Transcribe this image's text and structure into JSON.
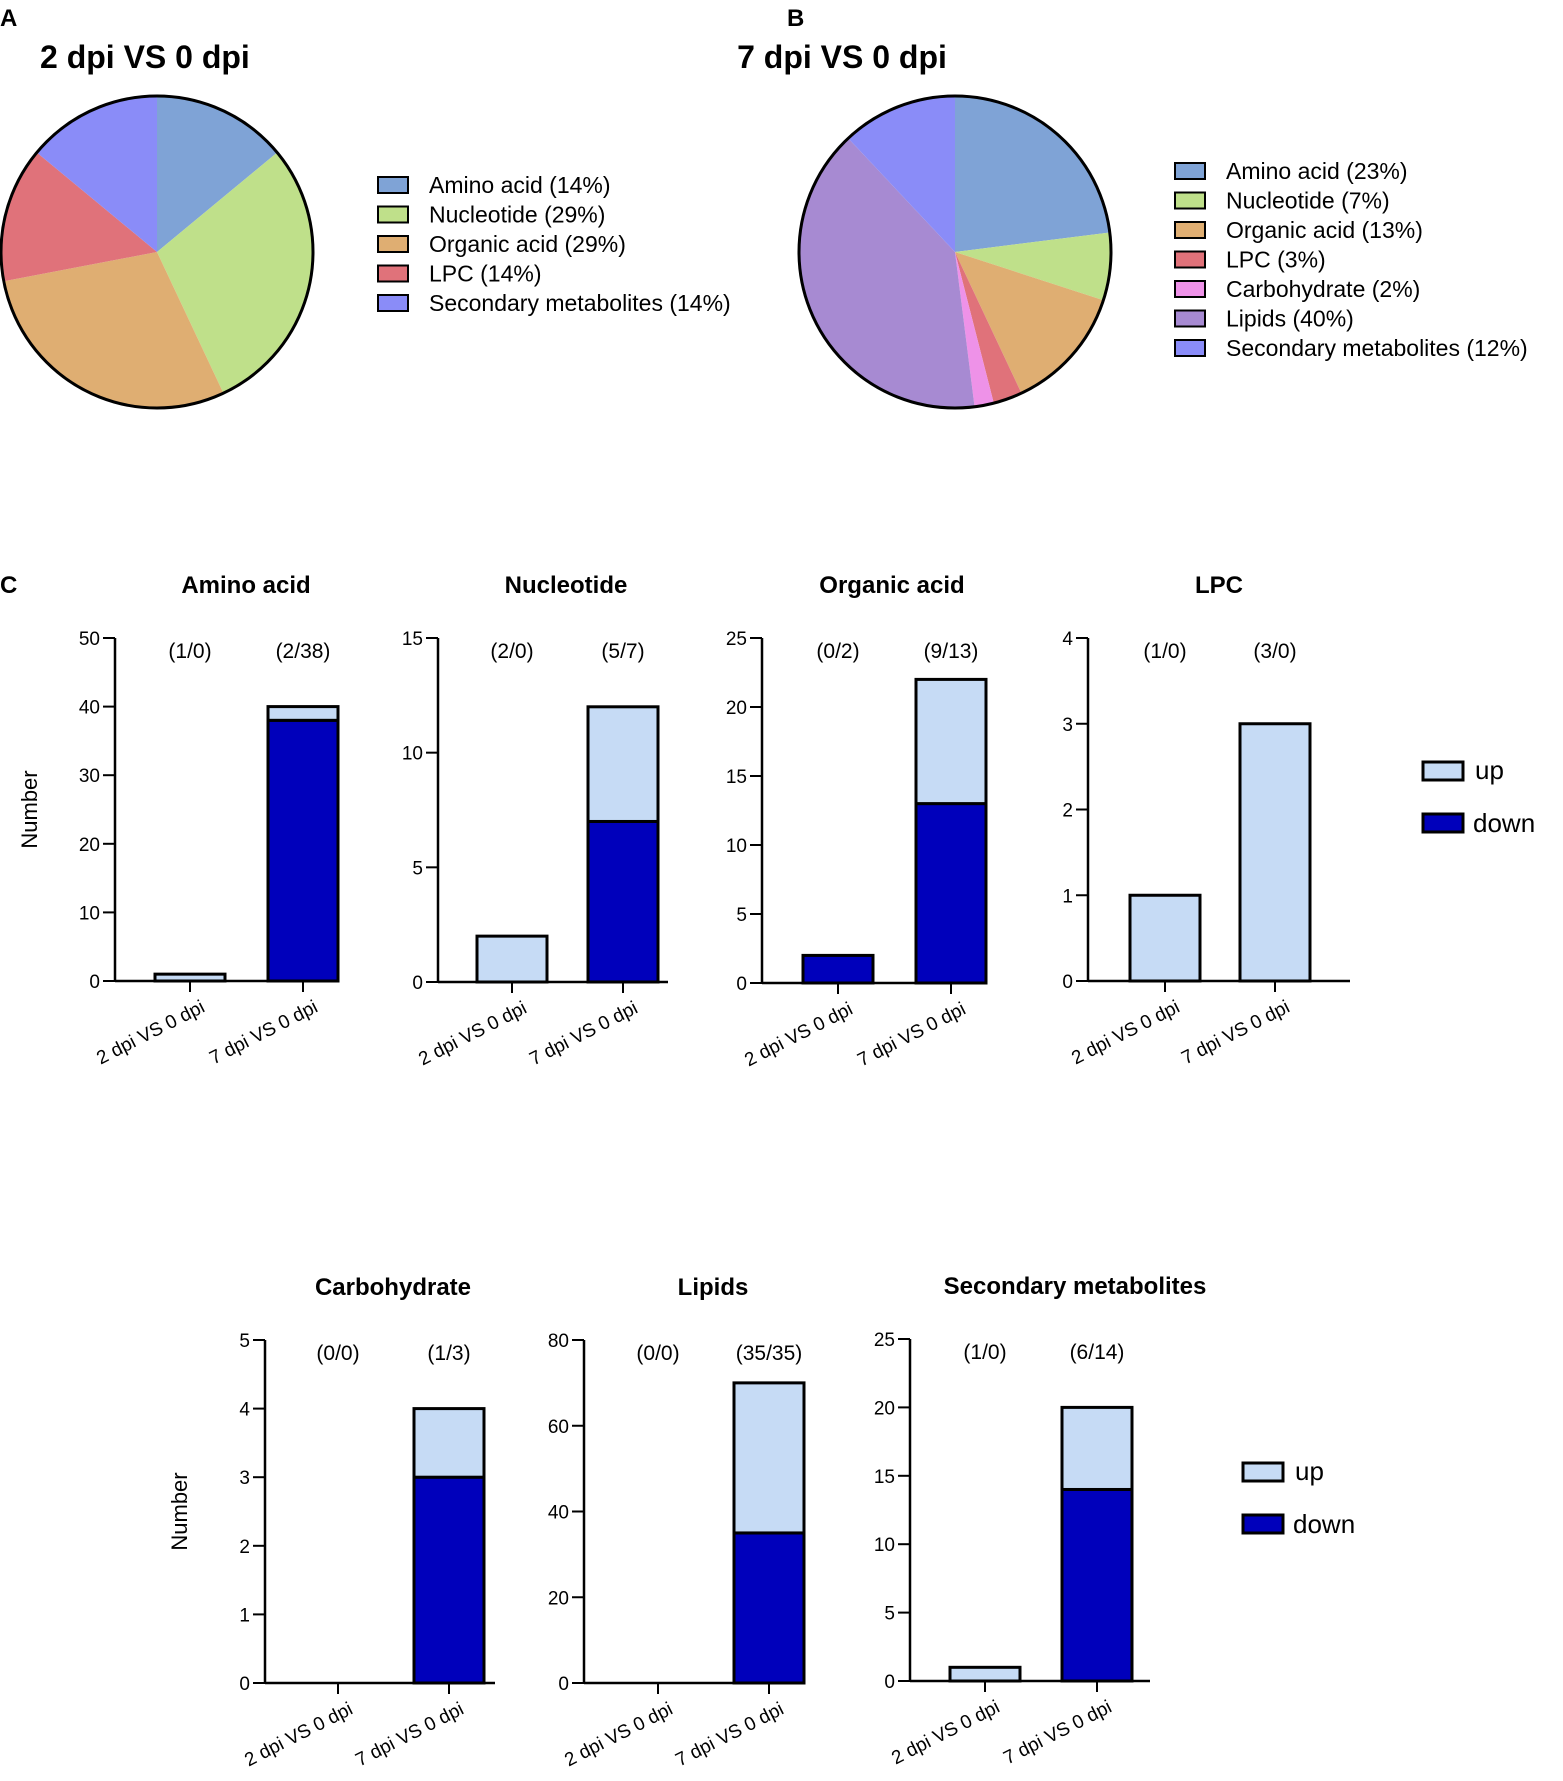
{
  "panel_labels": {
    "a": "A",
    "b": "B",
    "c": "C"
  },
  "colors": {
    "up": "#c6dbf5",
    "down": "#0000bb",
    "outline": "#000000",
    "amino_acid": "#7fa3d6",
    "nucleotide": "#bfe08a",
    "organic_acid": "#dfae72",
    "lpc": "#e0727a",
    "carbohydrate": "#ee92e8",
    "lipids": "#a78ad2",
    "secondary_metabolites": "#8a8cf8"
  },
  "y_axis_label": "Number",
  "legend": {
    "up": "up",
    "down": "down"
  },
  "chart_data": [
    {
      "id": "pie_a",
      "type": "pie",
      "title": "2 dpi VS 0 dpi",
      "slices": [
        {
          "label": "Amino acid (14%)",
          "value": 14,
          "color": "#7fa3d6"
        },
        {
          "label": "Nucleotide (29%)",
          "value": 29,
          "color": "#bfe08a"
        },
        {
          "label": "Organic acid (29%)",
          "value": 29,
          "color": "#dfae72"
        },
        {
          "label": "LPC (14%)",
          "value": 14,
          "color": "#e0727a"
        },
        {
          "label": "Secondary metabolites (14%)",
          "value": 14,
          "color": "#8a8cf8"
        }
      ]
    },
    {
      "id": "pie_b",
      "type": "pie",
      "title": "7 dpi VS 0 dpi",
      "slices": [
        {
          "label": "Amino acid (23%)",
          "value": 23,
          "color": "#7fa3d6"
        },
        {
          "label": "Nucleotide (7%)",
          "value": 7,
          "color": "#bfe08a"
        },
        {
          "label": "Organic acid (13%)",
          "value": 13,
          "color": "#dfae72"
        },
        {
          "label": "LPC (3%)",
          "value": 3,
          "color": "#e0727a"
        },
        {
          "label": "Carbohydrate (2%)",
          "value": 2,
          "color": "#ee92e8"
        },
        {
          "label": "Lipids (40%)",
          "value": 40,
          "color": "#a78ad2"
        },
        {
          "label": "Secondary metabolites (12%)",
          "value": 12,
          "color": "#8a8cf8"
        }
      ]
    },
    {
      "id": "bar_amino_acid",
      "type": "bar",
      "stacked": true,
      "title": "Amino acid",
      "categories": [
        "2 dpi VS 0 dpi",
        "7 dpi VS 0 dpi"
      ],
      "annotations": [
        "(1/0)",
        "(2/38)"
      ],
      "series": [
        {
          "name": "down",
          "values": [
            0,
            38
          ]
        },
        {
          "name": "up",
          "values": [
            1,
            2
          ]
        }
      ],
      "ylim": [
        0,
        50
      ],
      "yticks": [
        0,
        10,
        20,
        30,
        40,
        50
      ],
      "ylabel": "Number"
    },
    {
      "id": "bar_nucleotide",
      "type": "bar",
      "stacked": true,
      "title": "Nucleotide",
      "categories": [
        "2 dpi VS 0 dpi",
        "7 dpi VS 0 dpi"
      ],
      "annotations": [
        "(2/0)",
        "(5/7)"
      ],
      "series": [
        {
          "name": "down",
          "values": [
            0,
            7
          ]
        },
        {
          "name": "up",
          "values": [
            2,
            5
          ]
        }
      ],
      "ylim": [
        0,
        15
      ],
      "yticks": [
        0,
        5,
        10,
        15
      ],
      "ylabel": ""
    },
    {
      "id": "bar_organic_acid",
      "type": "bar",
      "stacked": true,
      "title": "Organic acid",
      "categories": [
        "2 dpi VS 0 dpi",
        "7 dpi VS 0 dpi"
      ],
      "annotations": [
        "(0/2)",
        "(9/13)"
      ],
      "series": [
        {
          "name": "down",
          "values": [
            2,
            13
          ]
        },
        {
          "name": "up",
          "values": [
            0,
            9
          ]
        }
      ],
      "ylim": [
        0,
        25
      ],
      "yticks": [
        0,
        5,
        10,
        15,
        20,
        25
      ],
      "ylabel": ""
    },
    {
      "id": "bar_lpc",
      "type": "bar",
      "stacked": true,
      "title": "LPC",
      "categories": [
        "2 dpi VS 0 dpi",
        "7 dpi VS 0 dpi"
      ],
      "annotations": [
        "(1/0)",
        "(3/0)"
      ],
      "series": [
        {
          "name": "down",
          "values": [
            0,
            0
          ]
        },
        {
          "name": "up",
          "values": [
            1,
            3
          ]
        }
      ],
      "ylim": [
        0,
        4
      ],
      "yticks": [
        0,
        1,
        2,
        3,
        4
      ],
      "ylabel": ""
    },
    {
      "id": "bar_carbohydrate",
      "type": "bar",
      "stacked": true,
      "title": "Carbohydrate",
      "categories": [
        "2 dpi VS 0 dpi",
        "7 dpi VS 0 dpi"
      ],
      "annotations": [
        "(0/0)",
        "(1/3)"
      ],
      "series": [
        {
          "name": "down",
          "values": [
            0,
            3
          ]
        },
        {
          "name": "up",
          "values": [
            0,
            1
          ]
        }
      ],
      "ylim": [
        0,
        5
      ],
      "yticks": [
        0,
        1,
        2,
        3,
        4,
        5
      ],
      "ylabel": "Number"
    },
    {
      "id": "bar_lipids",
      "type": "bar",
      "stacked": true,
      "title": "Lipids",
      "categories": [
        "2 dpi VS 0 dpi",
        "7 dpi VS 0 dpi"
      ],
      "annotations": [
        "(0/0)",
        "(35/35)"
      ],
      "series": [
        {
          "name": "down",
          "values": [
            0,
            35
          ]
        },
        {
          "name": "up",
          "values": [
            0,
            35
          ]
        }
      ],
      "ylim": [
        0,
        80
      ],
      "yticks": [
        0,
        20,
        40,
        60,
        80
      ],
      "ylabel": ""
    },
    {
      "id": "bar_secondary_metabolites",
      "type": "bar",
      "stacked": true,
      "title": "Secondary metabolites",
      "categories": [
        "2 dpi VS 0 dpi",
        "7 dpi VS 0 dpi"
      ],
      "annotations": [
        "(1/0)",
        "(6/14)"
      ],
      "series": [
        {
          "name": "down",
          "values": [
            0,
            14
          ]
        },
        {
          "name": "up",
          "values": [
            1,
            6
          ]
        }
      ],
      "ylim": [
        0,
        25
      ],
      "yticks": [
        0,
        5,
        10,
        15,
        20,
        25
      ],
      "ylabel": ""
    }
  ]
}
